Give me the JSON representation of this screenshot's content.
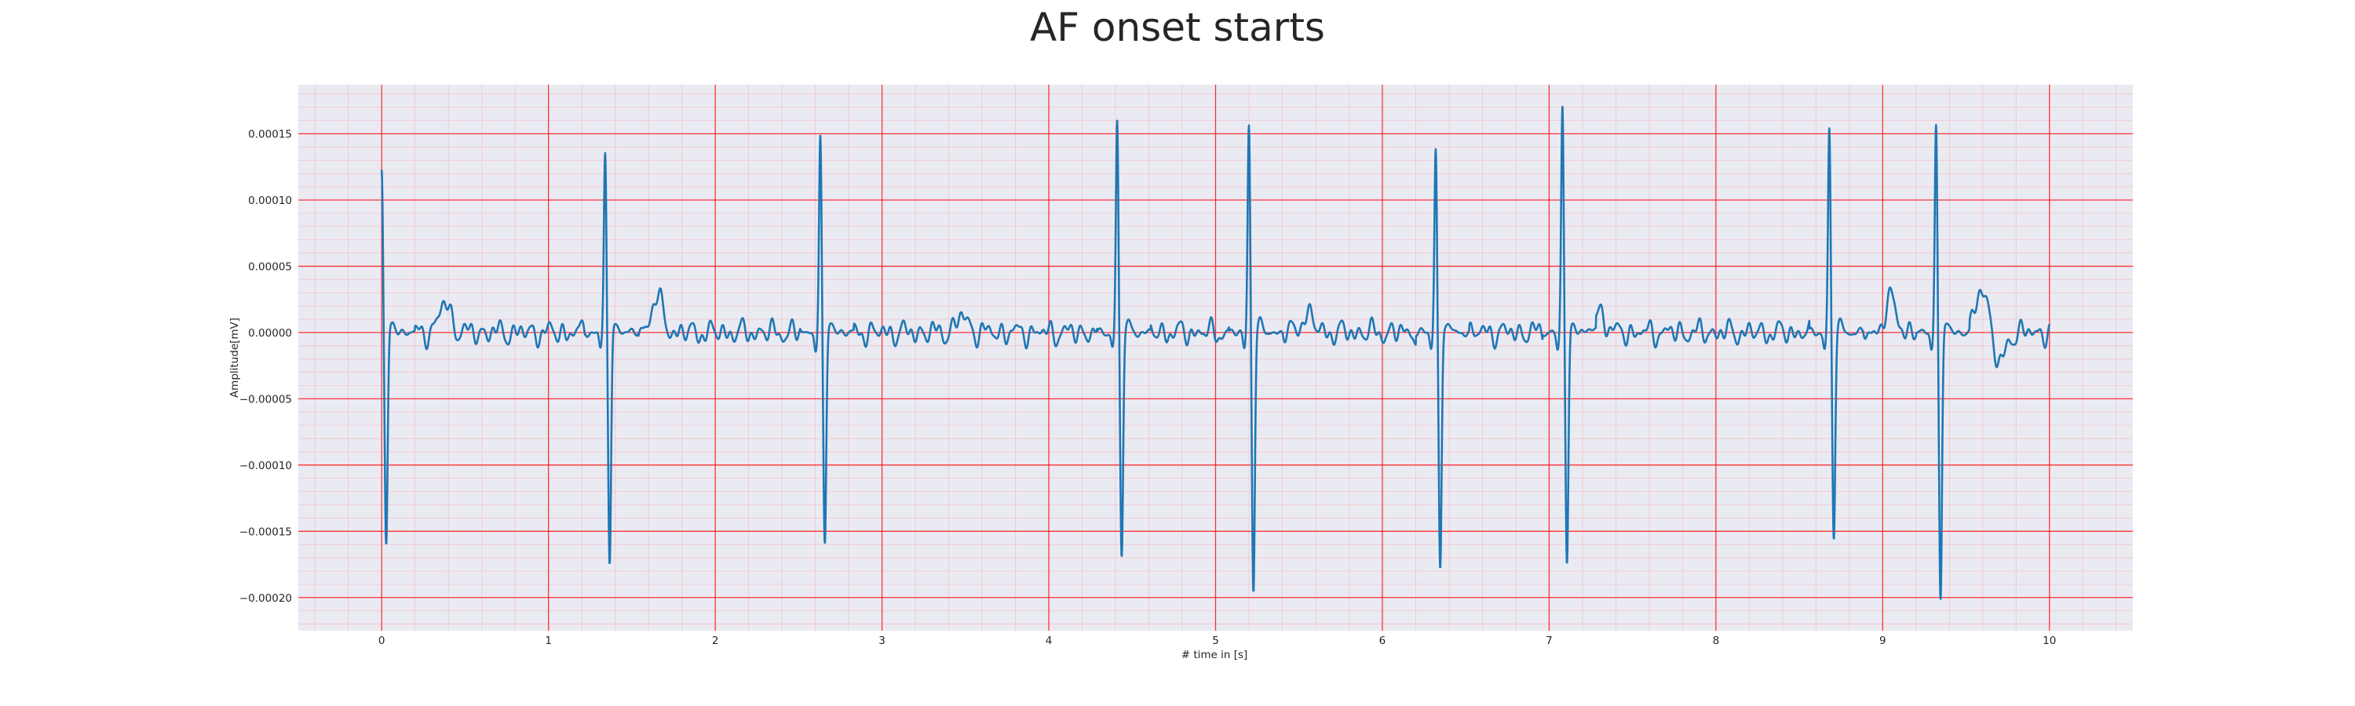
{
  "chart_data": {
    "type": "line",
    "title": "AF onset starts",
    "xlabel": "# time in [s]",
    "ylabel": "Amplitude[mV]",
    "xlim": [
      -0.5,
      10.5
    ],
    "ylim": [
      -0.000225,
      0.000187
    ],
    "xticks": [
      0,
      1,
      2,
      3,
      4,
      5,
      6,
      7,
      8,
      9,
      10
    ],
    "yticks": [
      -0.0002,
      -0.00015,
      -0.0001,
      -5e-05,
      0,
      5e-05,
      0.0001,
      0.00015
    ],
    "ytick_labels": [
      "−0.00020",
      "−0.00015",
      "−0.00010",
      "−0.00005",
      "0.00000",
      "0.00005",
      "0.00010",
      "0.00015"
    ],
    "grid": true,
    "colors": {
      "line": "#1f77b4",
      "plot_background": "#eaeaf2",
      "major_grid": "#ff0000",
      "minor_grid": "#ff9999",
      "text": "#262626"
    },
    "series": [
      {
        "beats": [
          {
            "t": 0.0,
            "up": 0.000122,
            "down": -0.000162
          },
          {
            "t": 1.34,
            "up": 0.000137,
            "down": -0.000177
          },
          {
            "t": 2.63,
            "up": 0.000147,
            "down": -0.000161
          },
          {
            "t": 4.41,
            "up": 0.000162,
            "down": -0.000171
          },
          {
            "t": 5.2,
            "up": 0.000159,
            "down": -0.000196
          },
          {
            "t": 6.32,
            "up": 0.00014,
            "down": -0.00018
          },
          {
            "t": 7.08,
            "up": 0.000171,
            "down": -0.000177
          },
          {
            "t": 8.68,
            "up": 0.000154,
            "down": -0.000156
          },
          {
            "t": 9.32,
            "up": 0.000159,
            "down": -0.000205
          }
        ],
        "baseline": [
          {
            "t": 0.38,
            "v": 2.2e-05
          },
          {
            "t": 1.65,
            "v": 2.6e-05
          },
          {
            "t": 3.48,
            "v": 1.2e-05
          },
          {
            "t": 5.55,
            "v": 1.4e-05
          },
          {
            "t": 7.3,
            "v": 1.6e-05
          },
          {
            "t": 9.05,
            "v": 2.4e-05
          },
          {
            "t": 9.6,
            "v": 3.6e-05
          },
          {
            "t": 9.7,
            "v": -2.5e-05
          }
        ]
      }
    ]
  }
}
